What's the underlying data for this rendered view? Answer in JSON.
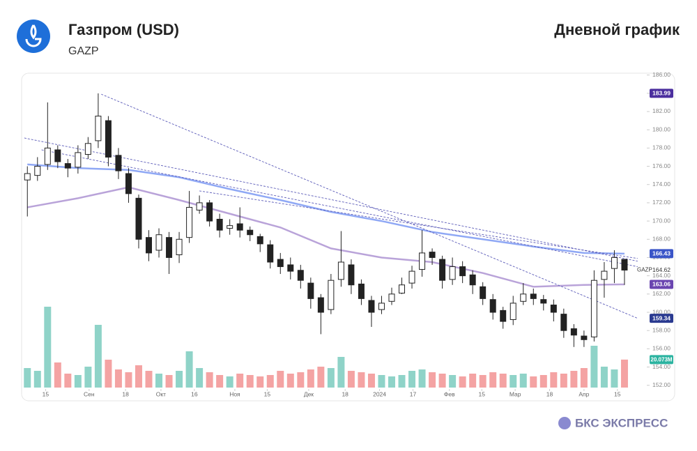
{
  "header": {
    "title": "Газпром (USD)",
    "ticker": "GAZP",
    "period": "Дневной график"
  },
  "footer": {
    "brand": "БКС ЭКСПРЕСС"
  },
  "chart_data": {
    "type": "candlestick",
    "xlim": [
      -0.5,
      61
    ],
    "ylim": [
      150.3,
      186.2
    ],
    "yticks": [
      {
        "value": 152,
        "label": "152.00"
      },
      {
        "value": 154,
        "label": "154.00"
      },
      {
        "value": 156,
        "label": "156.00"
      },
      {
        "value": 158,
        "label": "158.00"
      },
      {
        "value": 160,
        "label": "160.00"
      },
      {
        "value": 162,
        "label": "162.00"
      },
      {
        "value": 164,
        "label": "164.00"
      },
      {
        "value": 166,
        "label": "166.00"
      },
      {
        "value": 168,
        "label": "168.00"
      },
      {
        "value": 170,
        "label": "170.00"
      },
      {
        "value": 172,
        "label": "172.00"
      },
      {
        "value": 174,
        "label": "174.00"
      },
      {
        "value": 176,
        "label": "176.00"
      },
      {
        "value": 178,
        "label": "178.00"
      },
      {
        "value": 180,
        "label": "180.00"
      },
      {
        "value": 182,
        "label": "182.00"
      },
      {
        "value": 184,
        "label": "184.00"
      },
      {
        "value": 186,
        "label": "186.00"
      }
    ],
    "xticks": [
      {
        "value": 1.8,
        "label": "15"
      },
      {
        "value": 6.1,
        "label": "Сен"
      },
      {
        "value": 9.7,
        "label": "18"
      },
      {
        "value": 13.2,
        "label": "Окт"
      },
      {
        "value": 16.5,
        "label": "16"
      },
      {
        "value": 20.5,
        "label": "Ноя"
      },
      {
        "value": 23.7,
        "label": "15"
      },
      {
        "value": 27.8,
        "label": "Дек"
      },
      {
        "value": 31.4,
        "label": "18"
      },
      {
        "value": 34.8,
        "label": "2024"
      },
      {
        "value": 38.1,
        "label": "17"
      },
      {
        "value": 41.7,
        "label": "Фев"
      },
      {
        "value": 44.9,
        "label": "15"
      },
      {
        "value": 48.2,
        "label": "Мар"
      },
      {
        "value": 51.6,
        "label": "18"
      },
      {
        "value": 55.0,
        "label": "Апр"
      },
      {
        "value": 58.3,
        "label": "15"
      }
    ],
    "candles": {
      "open": [
        174.5,
        175.0,
        176.2,
        177.8,
        176.3,
        175.9,
        177.3,
        178.8,
        181.0,
        177.2,
        175.2,
        172.5,
        168.2,
        166.8,
        168.2,
        166.3,
        168.2,
        171.2,
        172.0,
        170.2,
        169.2,
        169.7,
        169.0,
        168.3,
        167.4,
        165.8,
        165.2,
        164.6,
        163.2,
        161.6,
        160.3,
        163.6,
        165.2,
        163.1,
        161.3,
        160.3,
        161.2,
        162.1,
        163.2,
        164.7,
        166.6,
        165.8,
        163.6,
        165.0,
        164.1,
        162.8,
        161.4,
        160.2,
        159.2,
        161.2,
        162.0,
        161.4,
        160.8,
        159.8,
        158.2,
        157.4,
        157.3,
        163.6,
        164.8,
        165.8
      ],
      "high": [
        176.0,
        177.0,
        183.0,
        178.3,
        176.8,
        178.3,
        179.2,
        183.99,
        181.5,
        178.0,
        175.8,
        172.9,
        169.0,
        169.2,
        168.8,
        168.8,
        173.3,
        172.8,
        172.3,
        170.8,
        170.2,
        171.5,
        169.4,
        168.6,
        167.9,
        166.5,
        166.0,
        165.2,
        163.8,
        162.0,
        164.2,
        168.9,
        165.8,
        163.6,
        161.8,
        161.8,
        162.7,
        163.8,
        165.1,
        169.0,
        167.0,
        166.2,
        166.0,
        165.6,
        164.6,
        163.3,
        162.0,
        160.6,
        161.8,
        163.2,
        162.6,
        161.9,
        161.4,
        160.4,
        158.7,
        158.0,
        164.6,
        165.5,
        166.8,
        165.3
      ],
      "low": [
        170.5,
        174.4,
        175.6,
        175.8,
        174.8,
        175.2,
        176.8,
        178.0,
        176.0,
        174.6,
        172.0,
        167.0,
        165.6,
        166.0,
        164.2,
        165.4,
        167.6,
        170.8,
        169.4,
        168.2,
        168.5,
        168.2,
        167.8,
        166.6,
        164.8,
        164.2,
        163.6,
        162.6,
        160.4,
        157.6,
        159.8,
        162.8,
        162.0,
        160.8,
        158.4,
        159.8,
        160.8,
        162.0,
        162.6,
        163.9,
        165.2,
        162.6,
        163.0,
        163.2,
        162.0,
        160.8,
        159.2,
        158.2,
        158.6,
        160.8,
        160.8,
        160.2,
        159.0,
        157.2,
        156.2,
        156.2,
        156.8,
        161.6,
        163.2,
        163.0
      ],
      "close": [
        175.2,
        176.0,
        178.0,
        176.5,
        175.8,
        177.5,
        178.5,
        181.5,
        177.0,
        175.5,
        173.0,
        168.0,
        166.5,
        168.5,
        166.0,
        168.0,
        171.5,
        172.0,
        170.0,
        169.0,
        169.5,
        169.0,
        168.5,
        167.5,
        165.5,
        165.0,
        164.5,
        163.5,
        161.5,
        160.0,
        163.5,
        165.5,
        163.0,
        161.5,
        160.0,
        161.0,
        162.0,
        163.0,
        164.5,
        166.5,
        166.0,
        163.5,
        165.0,
        164.0,
        163.0,
        161.5,
        160.0,
        159.0,
        161.0,
        162.0,
        161.5,
        161.0,
        160.0,
        158.0,
        157.5,
        157.0,
        163.5,
        164.5,
        166.0,
        164.62
      ]
    },
    "volume": {
      "vlim": [
        0,
        70
      ],
      "up_color": "#8fd3c8",
      "down_color": "#f4a3a3",
      "values": [
        14,
        12,
        58,
        18,
        10,
        9,
        15,
        45,
        20,
        13,
        11,
        16,
        12,
        10,
        9,
        12,
        26,
        14,
        11,
        9,
        8,
        10,
        9,
        8,
        9,
        12,
        10,
        11,
        13,
        15,
        14,
        22,
        12,
        11,
        10,
        9,
        8,
        9,
        12,
        13,
        11,
        10,
        9,
        8,
        10,
        9,
        11,
        10,
        9,
        10,
        8,
        9,
        11,
        10,
        12,
        14,
        30,
        15,
        13,
        20.073
      ],
      "last": {
        "value": 20.073,
        "label": "20.073M",
        "color": "#2bb3a0"
      }
    },
    "lines": [
      {
        "color": "#8fa8f5",
        "x": [
          0,
          5,
          10,
          15,
          20,
          25,
          30,
          35,
          40,
          45,
          50,
          55,
          59
        ],
        "values": [
          176.2,
          175.8,
          175.6,
          174.8,
          173.5,
          172.3,
          171.0,
          170.0,
          168.8,
          168.0,
          167.2,
          166.5,
          166.43
        ]
      },
      {
        "color": "#b9a3d9",
        "x": [
          0,
          5,
          10,
          15,
          20,
          25,
          30,
          35,
          40,
          45,
          50,
          55,
          59
        ],
        "values": [
          171.5,
          172.5,
          173.7,
          172.3,
          170.8,
          169.3,
          167.0,
          166.0,
          165.5,
          164.3,
          162.8,
          163.0,
          163.06
        ]
      }
    ],
    "trendlines": [
      {
        "x": [
          7.3,
          60.3
        ],
        "values": [
          183.9,
          159.34
        ]
      },
      {
        "x": [
          -0.3,
          60.3
        ],
        "values": [
          179.1,
          165.6
        ]
      },
      {
        "x": [
          1.4,
          60.3
        ],
        "values": [
          177.8,
          165.0
        ]
      },
      {
        "x": [
          17.0,
          60.3
        ],
        "values": [
          173.3,
          165.9
        ]
      }
    ],
    "price_tags": [
      {
        "value": 183.99,
        "color": "#4b2e9e"
      },
      {
        "value": 166.43,
        "color": "#3a55c8"
      },
      {
        "value": 163.06,
        "color": "#6a45b0"
      },
      {
        "value": 159.34,
        "color": "#2a3a90"
      }
    ],
    "last_price": {
      "value": 164.62,
      "symbol": "GAZP"
    }
  }
}
